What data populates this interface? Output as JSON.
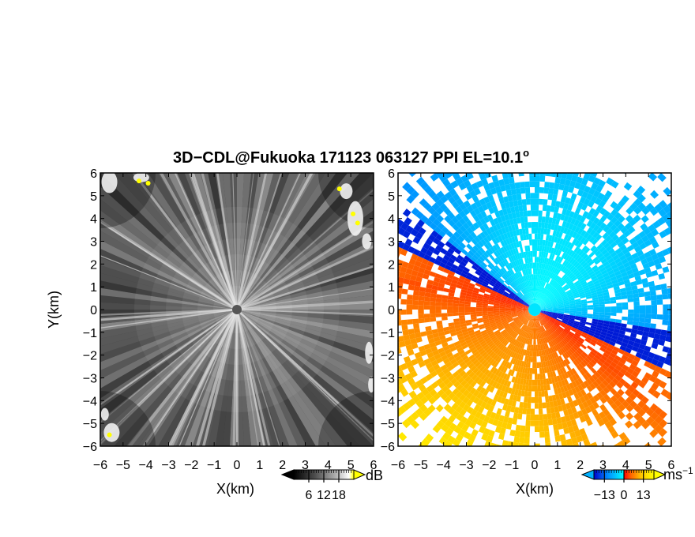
{
  "title_main": "3D−CDL@Fukuoka 171123 063127 PPI EL=10.1",
  "title_deg": "o",
  "chart_data": [
    {
      "type": "heatmap",
      "panel": "left",
      "quantity": "reflectivity / SNR",
      "xlabel": "X(km)",
      "ylabel": "Y(km)",
      "xlim": [
        -6,
        6
      ],
      "ylim": [
        -6,
        6
      ],
      "ticks": [
        -6,
        -5,
        -4,
        -3,
        -2,
        -1,
        0,
        1,
        2,
        3,
        4,
        5,
        6
      ],
      "tick_labels": [
        "−6",
        "−5",
        "−4",
        "−3",
        "−2",
        "−1",
        "0",
        "1",
        "2",
        "3",
        "4",
        "5",
        "6"
      ],
      "colorbar": {
        "unit": "dB",
        "tick_values": [
          6,
          12,
          18
        ],
        "tick_labels": [
          "6",
          "12",
          "18"
        ],
        "range": [
          0,
          24
        ],
        "colors": [
          "#000000",
          "#4d4d4d",
          "#9a9a9a",
          "#ffffff",
          "#ffff00"
        ]
      }
    },
    {
      "type": "heatmap",
      "panel": "right",
      "quantity": "Doppler velocity",
      "xlabel": "X(km)",
      "xlim": [
        -6,
        6
      ],
      "ylim": [
        -6,
        6
      ],
      "ticks": [
        -6,
        -5,
        -4,
        -3,
        -2,
        -1,
        0,
        1,
        2,
        3,
        4,
        5,
        6
      ],
      "tick_labels": [
        "−6",
        "−5",
        "−4",
        "−3",
        "−2",
        "−1",
        "0",
        "1",
        "2",
        "3",
        "4",
        "5",
        "6"
      ],
      "colorbar": {
        "unit": "ms",
        "unit_exp": "−1",
        "tick_values": [
          -13,
          0,
          13
        ],
        "tick_labels": [
          "−13",
          "0",
          "13"
        ],
        "range": [
          -20,
          20
        ],
        "colors": [
          "#0000cc",
          "#0088ff",
          "#00ddff",
          "#00ffff",
          "#ff0000",
          "#ff6600",
          "#ffcc00",
          "#ffff00"
        ]
      }
    }
  ]
}
